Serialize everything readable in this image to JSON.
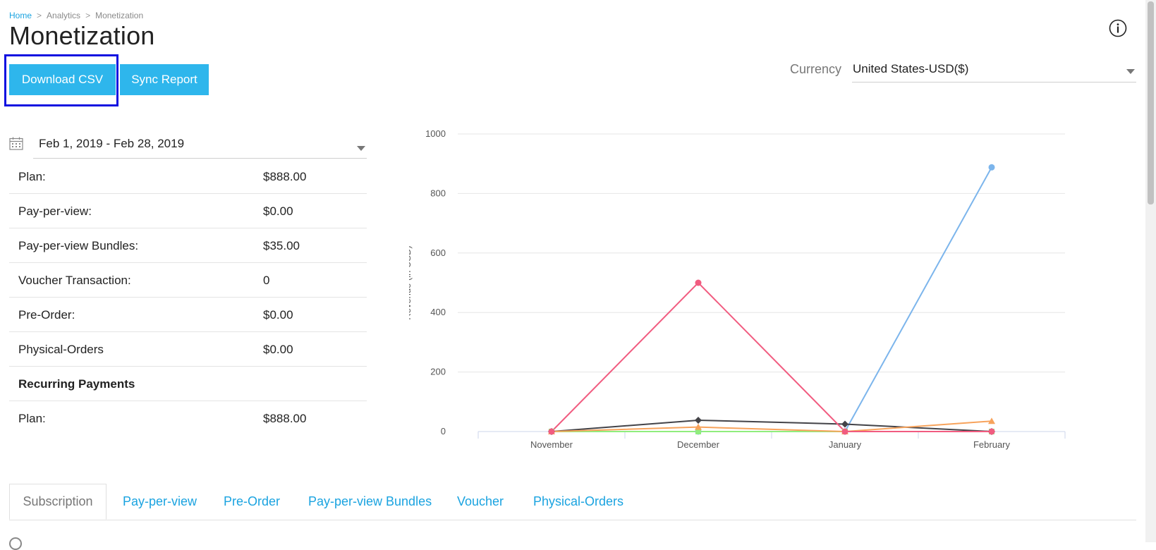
{
  "breadcrumb": {
    "home": "Home",
    "analytics": "Analytics",
    "current": "Monetization",
    "separator": ">"
  },
  "page_title": "Monetization",
  "actions": {
    "download_csv": "Download CSV",
    "sync_report": "Sync Report"
  },
  "currency": {
    "label": "Currency",
    "value": "United States-USD($)"
  },
  "date_range": {
    "value": "Feb 1, 2019 - Feb 28, 2019"
  },
  "summary": {
    "rows": [
      {
        "label": "Plan:",
        "value": "$888.00"
      },
      {
        "label": "Pay-per-view:",
        "value": "$0.00"
      },
      {
        "label": "Pay-per-view Bundles:",
        "value": "$35.00"
      },
      {
        "label": "Voucher Transaction:",
        "value": "0"
      },
      {
        "label": "Pre-Order:",
        "value": "$0.00"
      },
      {
        "label": "Physical-Orders",
        "value": "$0.00"
      },
      {
        "label": "Recurring Payments",
        "value": ""
      },
      {
        "label": "Plan:",
        "value": "$888.00"
      }
    ]
  },
  "chart_data": {
    "type": "line",
    "ylabel": "Revenue (in USD)",
    "xlabel": "",
    "categories": [
      "November",
      "December",
      "January",
      "February"
    ],
    "ylim": [
      0,
      1000
    ],
    "yticks": [
      0,
      200,
      400,
      600,
      800,
      1000
    ],
    "grid": true,
    "series": [
      {
        "values": [
          0,
          0,
          0,
          888
        ],
        "color": "#7cb5ec",
        "marker": "circle"
      },
      {
        "values": [
          0,
          38,
          25,
          0
        ],
        "color": "#434348",
        "marker": "diamond"
      },
      {
        "values": [
          0,
          0,
          0,
          0
        ],
        "color": "#90ed7d",
        "marker": "square"
      },
      {
        "values": [
          0,
          15,
          0,
          35
        ],
        "color": "#f7a35c",
        "marker": "triangle"
      },
      {
        "values": [
          0,
          500,
          0,
          0
        ],
        "color": "#f15c80",
        "marker": "circle"
      }
    ]
  },
  "tabs": [
    {
      "label": "Subscription"
    },
    {
      "label": "Pay-per-view"
    },
    {
      "label": "Pre-Order"
    },
    {
      "label": "Pay-per-view Bundles"
    },
    {
      "label": "Voucher"
    },
    {
      "label": "Physical-Orders"
    }
  ],
  "icons": {
    "info": "info-icon",
    "calendar": "calendar-icon"
  }
}
